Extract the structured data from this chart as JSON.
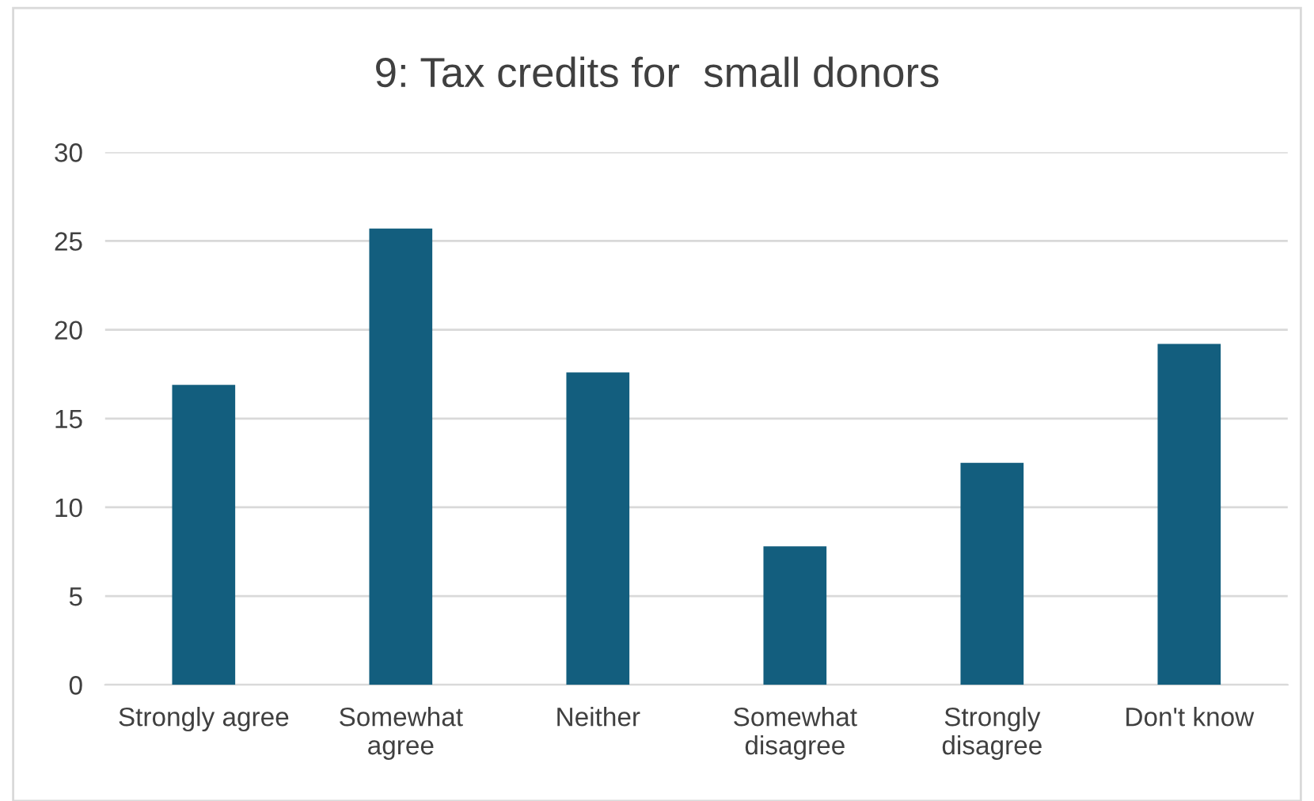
{
  "chart_data": {
    "type": "bar",
    "title": "9: Tax credits for  small donors",
    "categories": [
      "Strongly agree",
      "Somewhat\nagree",
      "Neither",
      "Somewhat\ndisagree",
      "Strongly\ndisagree",
      "Don't know"
    ],
    "values": [
      16.9,
      25.7,
      17.6,
      7.8,
      12.5,
      19.2
    ],
    "color": "#135e7e",
    "ylim": [
      0,
      30
    ],
    "yticks": [
      0,
      5,
      10,
      15,
      20,
      25,
      30
    ],
    "grid": "y"
  }
}
